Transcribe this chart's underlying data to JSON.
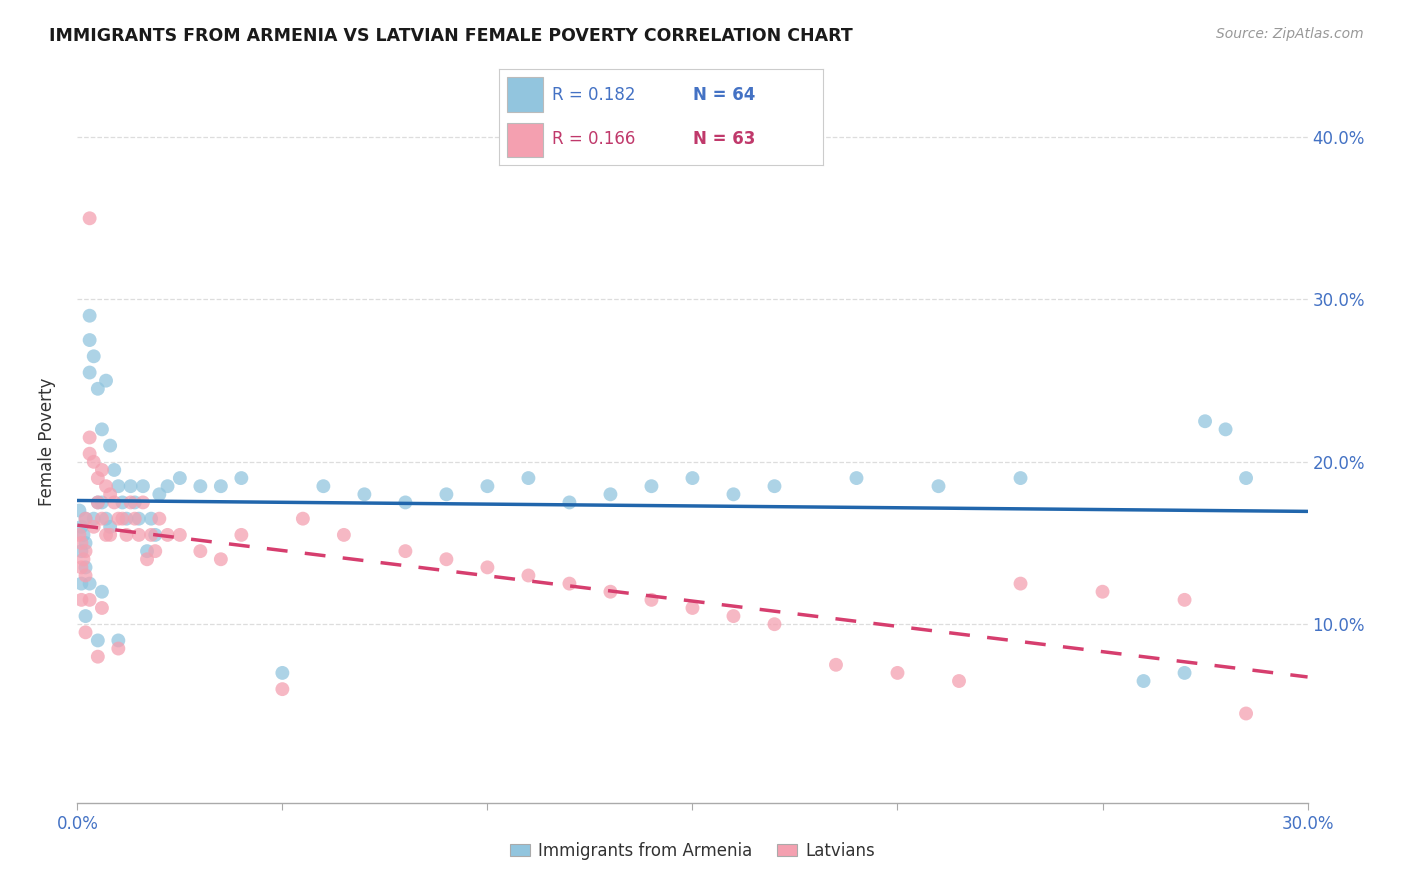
{
  "title": "IMMIGRANTS FROM ARMENIA VS LATVIAN FEMALE POVERTY CORRELATION CHART",
  "source": "Source: ZipAtlas.com",
  "ylabel": "Female Poverty",
  "ytick_labels": [
    "10.0%",
    "20.0%",
    "30.0%",
    "40.0%"
  ],
  "ytick_values": [
    0.1,
    0.2,
    0.3,
    0.4
  ],
  "xlim": [
    0.0,
    0.3
  ],
  "ylim": [
    -0.01,
    0.435
  ],
  "legend_r1": "R = 0.182",
  "legend_n1": "N = 64",
  "legend_r2": "R = 0.166",
  "legend_n2": "N = 63",
  "legend_label1": "Immigrants from Armenia",
  "legend_label2": "Latvians",
  "color_blue": "#92c5de",
  "color_pink": "#f4a0b0",
  "trendline_blue": "#2166ac",
  "trendline_pink": "#d63e6e",
  "background_color": "#ffffff",
  "grid_color": "#dddddd",
  "title_color": "#1a1a1a",
  "axis_label_color": "#4472c4",
  "scatter_blue_x": [
    0.0005,
    0.001,
    0.001,
    0.001,
    0.0015,
    0.002,
    0.002,
    0.002,
    0.002,
    0.003,
    0.003,
    0.003,
    0.003,
    0.004,
    0.004,
    0.005,
    0.005,
    0.005,
    0.006,
    0.006,
    0.006,
    0.007,
    0.007,
    0.008,
    0.008,
    0.009,
    0.01,
    0.01,
    0.011,
    0.012,
    0.013,
    0.014,
    0.015,
    0.016,
    0.017,
    0.018,
    0.019,
    0.02,
    0.022,
    0.025,
    0.03,
    0.035,
    0.04,
    0.05,
    0.06,
    0.07,
    0.08,
    0.09,
    0.1,
    0.11,
    0.12,
    0.13,
    0.14,
    0.15,
    0.16,
    0.17,
    0.19,
    0.21,
    0.23,
    0.26,
    0.27,
    0.275,
    0.28,
    0.285
  ],
  "scatter_blue_y": [
    0.17,
    0.16,
    0.145,
    0.125,
    0.155,
    0.165,
    0.15,
    0.135,
    0.105,
    0.29,
    0.275,
    0.255,
    0.125,
    0.265,
    0.165,
    0.245,
    0.175,
    0.09,
    0.22,
    0.175,
    0.12,
    0.25,
    0.165,
    0.21,
    0.16,
    0.195,
    0.185,
    0.09,
    0.175,
    0.165,
    0.185,
    0.175,
    0.165,
    0.185,
    0.145,
    0.165,
    0.155,
    0.18,
    0.185,
    0.19,
    0.185,
    0.185,
    0.19,
    0.07,
    0.185,
    0.18,
    0.175,
    0.18,
    0.185,
    0.19,
    0.175,
    0.18,
    0.185,
    0.19,
    0.18,
    0.185,
    0.19,
    0.185,
    0.19,
    0.065,
    0.07,
    0.225,
    0.22,
    0.19
  ],
  "scatter_pink_x": [
    0.0005,
    0.001,
    0.001,
    0.001,
    0.0015,
    0.002,
    0.002,
    0.002,
    0.002,
    0.003,
    0.003,
    0.003,
    0.003,
    0.004,
    0.004,
    0.005,
    0.005,
    0.005,
    0.006,
    0.006,
    0.006,
    0.007,
    0.007,
    0.008,
    0.008,
    0.009,
    0.01,
    0.01,
    0.011,
    0.012,
    0.013,
    0.014,
    0.015,
    0.016,
    0.017,
    0.018,
    0.019,
    0.02,
    0.022,
    0.025,
    0.03,
    0.035,
    0.04,
    0.05,
    0.055,
    0.065,
    0.08,
    0.09,
    0.1,
    0.11,
    0.12,
    0.13,
    0.14,
    0.15,
    0.16,
    0.17,
    0.185,
    0.2,
    0.215,
    0.23,
    0.25,
    0.27,
    0.285
  ],
  "scatter_pink_y": [
    0.155,
    0.15,
    0.135,
    0.115,
    0.14,
    0.165,
    0.145,
    0.13,
    0.095,
    0.35,
    0.215,
    0.205,
    0.115,
    0.2,
    0.16,
    0.19,
    0.175,
    0.08,
    0.195,
    0.165,
    0.11,
    0.185,
    0.155,
    0.18,
    0.155,
    0.175,
    0.165,
    0.085,
    0.165,
    0.155,
    0.175,
    0.165,
    0.155,
    0.175,
    0.14,
    0.155,
    0.145,
    0.165,
    0.155,
    0.155,
    0.145,
    0.14,
    0.155,
    0.06,
    0.165,
    0.155,
    0.145,
    0.14,
    0.135,
    0.13,
    0.125,
    0.12,
    0.115,
    0.11,
    0.105,
    0.1,
    0.075,
    0.07,
    0.065,
    0.125,
    0.12,
    0.115,
    0.045
  ]
}
